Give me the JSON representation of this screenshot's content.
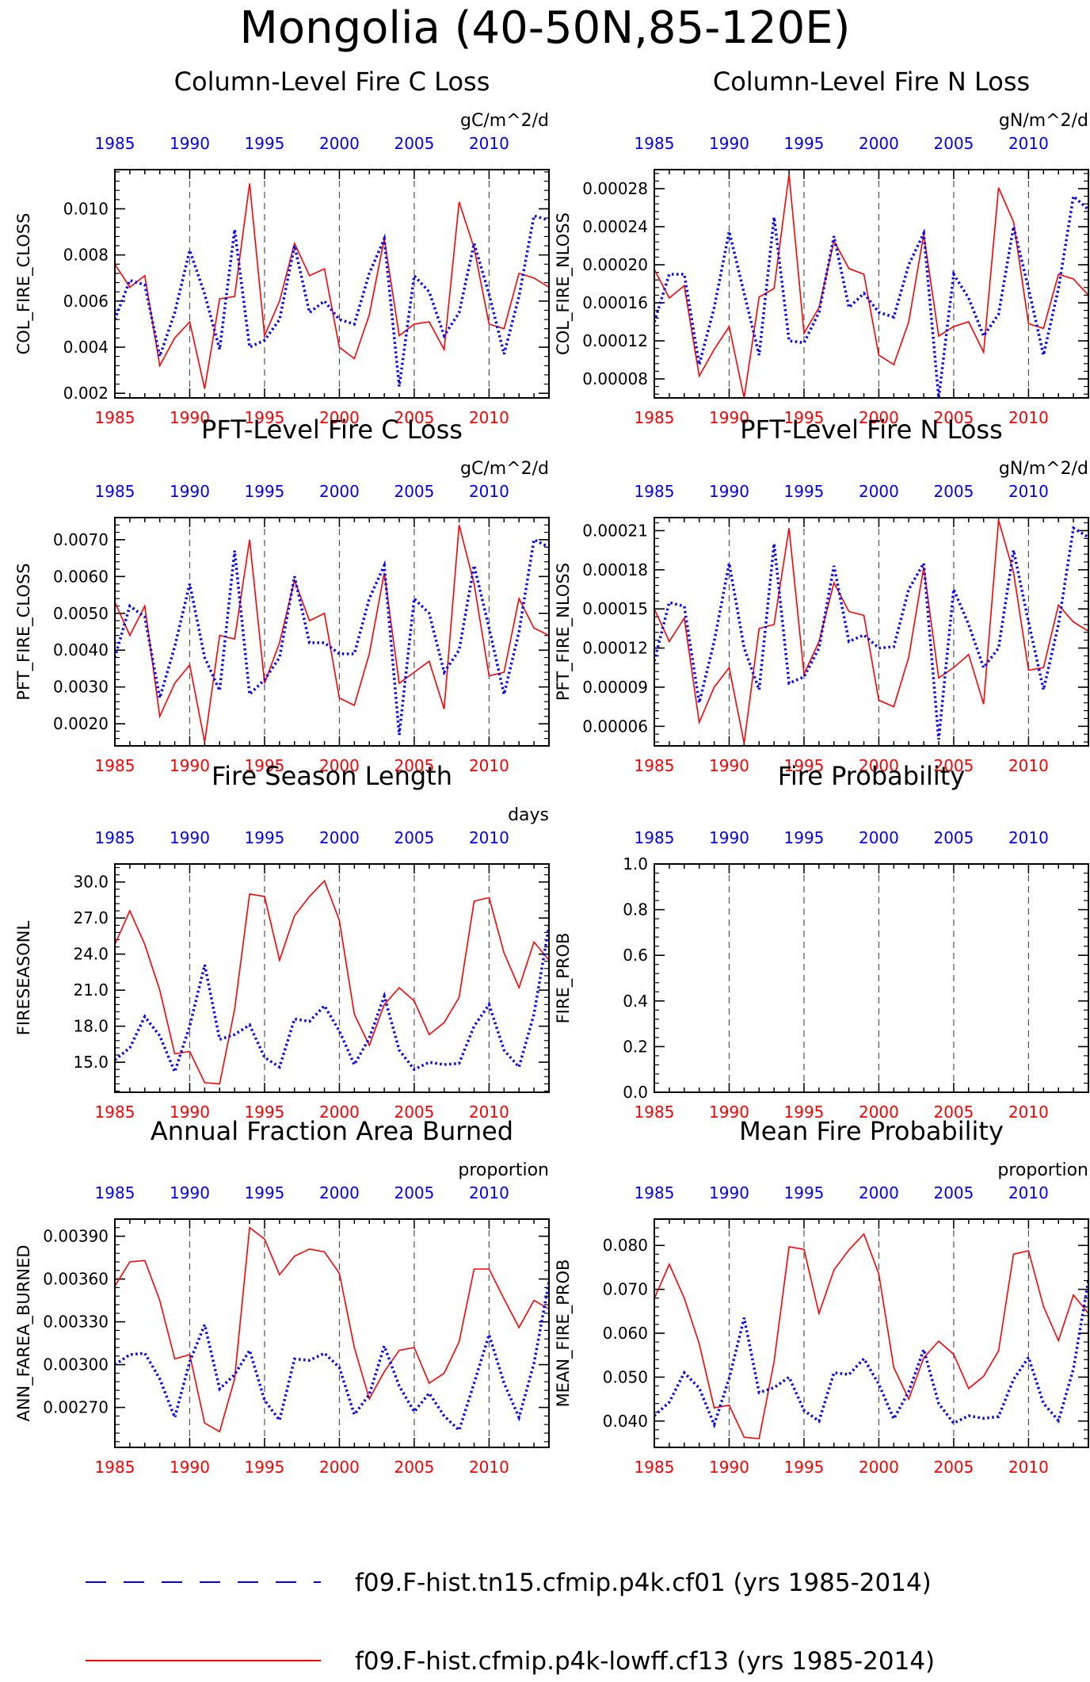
{
  "page_title": "Mongolia (40-50N,85-120E)",
  "colors": {
    "series_a": "#0000ff",
    "series_b": "#ff0000",
    "axis": "#000000"
  },
  "legend": {
    "entries": [
      {
        "label": "f09.F-hist.tn15.cfmip.p4k.cf01 (yrs 1985-2014)",
        "color": "#0000ff",
        "style": "dashed"
      },
      {
        "label": "f09.F-hist.cfmip.p4k-lowff.cf13 (yrs 1985-2014)",
        "color": "#ff0000",
        "style": "solid"
      }
    ]
  },
  "chart_data": [
    {
      "type": "line",
      "title": "Column-Level Fire C Loss",
      "units": "gC/m^2/d",
      "ylabel": "COL_FIRE_CLOSS",
      "xlim": [
        1985,
        2014
      ],
      "ylim": [
        0.0018,
        0.0117
      ],
      "yticks": [
        0.002,
        0.004,
        0.006,
        0.008,
        0.01
      ],
      "ytick_labels": [
        "0.002",
        "0.004",
        "0.006",
        "0.008",
        "0.010"
      ],
      "xtick_labels_top": [
        "1985",
        "1990",
        "1995",
        "2000",
        "2005",
        "2010"
      ],
      "xtick_labels_bottom": [
        "1985",
        "1990",
        "1995",
        "2000",
        "2005",
        "2010"
      ],
      "x": [
        1985,
        1986,
        1987,
        1988,
        1989,
        1990,
        1991,
        1992,
        1993,
        1994,
        1995,
        1996,
        1997,
        1998,
        1999,
        2000,
        2001,
        2002,
        2003,
        2004,
        2005,
        2006,
        2007,
        2008,
        2009,
        2010,
        2011,
        2012,
        2013,
        2014
      ],
      "series": [
        {
          "color": "#0000ff",
          "style": "dotted",
          "values": [
            0.0052,
            0.0069,
            0.0067,
            0.0036,
            0.0055,
            0.0082,
            0.0063,
            0.0039,
            0.0091,
            0.004,
            0.0043,
            0.0052,
            0.0084,
            0.0055,
            0.006,
            0.0052,
            0.005,
            0.0072,
            0.0087,
            0.0023,
            0.0071,
            0.0064,
            0.0045,
            0.0055,
            0.0085,
            0.0063,
            0.0037,
            0.0062,
            0.0097,
            0.0095
          ]
        },
        {
          "color": "#ff0000",
          "style": "solid",
          "values": [
            0.0076,
            0.0066,
            0.0071,
            0.0032,
            0.0044,
            0.0051,
            0.0022,
            0.0061,
            0.0062,
            0.0111,
            0.0045,
            0.006,
            0.0085,
            0.0071,
            0.0074,
            0.004,
            0.0035,
            0.0054,
            0.0087,
            0.0045,
            0.005,
            0.0051,
            0.0039,
            0.0103,
            0.0083,
            0.005,
            0.0048,
            0.0072,
            0.007,
            0.0066
          ]
        }
      ]
    },
    {
      "type": "line",
      "title": "Column-Level Fire N Loss",
      "units": "gN/m^2/d",
      "ylabel": "COL_FIRE_NLOSS",
      "xlim": [
        1985,
        2014
      ],
      "ylim": [
        6e-05,
        0.0003
      ],
      "yticks": [
        8e-05,
        0.00012,
        0.00016,
        0.0002,
        0.00024,
        0.00028
      ],
      "ytick_labels": [
        "0.00008",
        "0.00012",
        "0.00016",
        "0.00020",
        "0.00024",
        "0.00028"
      ],
      "xtick_labels_top": [
        "1985",
        "1990",
        "1995",
        "2000",
        "2005",
        "2010"
      ],
      "xtick_labels_bottom": [
        "1985",
        "1990",
        "1995",
        "2000",
        "2005",
        "2010"
      ],
      "x": [
        1985,
        1986,
        1987,
        1988,
        1989,
        1990,
        1991,
        1992,
        1993,
        1994,
        1995,
        1996,
        1997,
        1998,
        1999,
        2000,
        2001,
        2002,
        2003,
        2004,
        2005,
        2006,
        2007,
        2008,
        2009,
        2010,
        2011,
        2012,
        2013,
        2014
      ],
      "series": [
        {
          "color": "#0000ff",
          "style": "dotted",
          "values": [
            0.00014,
            0.00019,
            0.00019,
            9.5e-05,
            0.000155,
            0.000235,
            0.00017,
            0.000105,
            0.00025,
            0.00012,
            0.000118,
            0.00015,
            0.00023,
            0.000155,
            0.00017,
            0.00015,
            0.000145,
            0.0002,
            0.000233,
            6e-05,
            0.00019,
            0.000165,
            0.000125,
            0.000148,
            0.00024,
            0.000175,
            0.000105,
            0.000175,
            0.000272,
            0.000258
          ]
        },
        {
          "color": "#ff0000",
          "style": "solid",
          "values": [
            0.000195,
            0.000165,
            0.000178,
            8.3e-05,
            0.000111,
            0.000135,
            6e-05,
            0.000166,
            0.000175,
            0.000295,
            0.000128,
            0.000155,
            0.000225,
            0.000196,
            0.00019,
            0.000105,
            9.5e-05,
            0.00014,
            0.000232,
            0.000125,
            0.000135,
            0.00014,
            0.000108,
            0.000281,
            0.000245,
            0.000138,
            0.000133,
            0.00019,
            0.000185,
            0.000168
          ]
        }
      ]
    },
    {
      "type": "line",
      "title": "PFT-Level Fire C Loss",
      "units": "gC/m^2/d",
      "ylabel": "PFT_FIRE_CLOSS",
      "xlim": [
        1985,
        2014
      ],
      "ylim": [
        0.0014,
        0.0076
      ],
      "yticks": [
        0.002,
        0.003,
        0.004,
        0.005,
        0.006,
        0.007
      ],
      "ytick_labels": [
        "0.0020",
        "0.0030",
        "0.0040",
        "0.0050",
        "0.0060",
        "0.0070"
      ],
      "xtick_labels_top": [
        "1985",
        "1990",
        "1995",
        "2000",
        "2005",
        "2010"
      ],
      "xtick_labels_bottom": [
        "1985",
        "1990",
        "1995",
        "2000",
        "2005",
        "2010"
      ],
      "x": [
        1985,
        1986,
        1987,
        1988,
        1989,
        1990,
        1991,
        1992,
        1993,
        1994,
        1995,
        1996,
        1997,
        1998,
        1999,
        2000,
        2001,
        2002,
        2003,
        2004,
        2005,
        2006,
        2007,
        2008,
        2009,
        2010,
        2011,
        2012,
        2013,
        2014
      ],
      "series": [
        {
          "color": "#0000ff",
          "style": "dotted",
          "values": [
            0.0038,
            0.0052,
            0.0049,
            0.0027,
            0.0041,
            0.0058,
            0.0038,
            0.0029,
            0.0067,
            0.0028,
            0.0032,
            0.0038,
            0.006,
            0.0042,
            0.0042,
            0.0039,
            0.0039,
            0.0054,
            0.0063,
            0.0017,
            0.0054,
            0.005,
            0.0034,
            0.004,
            0.0063,
            0.0046,
            0.0028,
            0.0045,
            0.007,
            0.0068
          ]
        },
        {
          "color": "#ff0000",
          "style": "solid",
          "values": [
            0.0053,
            0.0044,
            0.0052,
            0.0022,
            0.0031,
            0.0036,
            0.0015,
            0.0044,
            0.0043,
            0.007,
            0.0031,
            0.0042,
            0.0059,
            0.0048,
            0.005,
            0.0027,
            0.0025,
            0.0039,
            0.0061,
            0.0031,
            0.0034,
            0.0037,
            0.0024,
            0.0074,
            0.0058,
            0.0033,
            0.0034,
            0.0054,
            0.0046,
            0.0044
          ]
        }
      ]
    },
    {
      "type": "line",
      "title": "PFT-Level Fire N Loss",
      "units": "gN/m^2/d",
      "ylabel": "PFT_FIRE_NLOSS",
      "xlim": [
        1985,
        2014
      ],
      "ylim": [
        4.5e-05,
        0.00022
      ],
      "yticks": [
        6e-05,
        9e-05,
        0.00012,
        0.00015,
        0.00018,
        0.00021
      ],
      "ytick_labels": [
        "0.00006",
        "0.00009",
        "0.00012",
        "0.00015",
        "0.00018",
        "0.00021"
      ],
      "xtick_labels_top": [
        "1985",
        "1990",
        "1995",
        "2000",
        "2005",
        "2010"
      ],
      "xtick_labels_bottom": [
        "1985",
        "1990",
        "1995",
        "2000",
        "2005",
        "2010"
      ],
      "x": [
        1985,
        1986,
        1987,
        1988,
        1989,
        1990,
        1991,
        1992,
        1993,
        1994,
        1995,
        1996,
        1997,
        1998,
        1999,
        2000,
        2001,
        2002,
        2003,
        2004,
        2005,
        2006,
        2007,
        2008,
        2009,
        2010,
        2011,
        2012,
        2013,
        2014
      ],
      "series": [
        {
          "color": "#0000ff",
          "style": "dotted",
          "values": [
            0.00011,
            0.000155,
            0.000152,
            7.8e-05,
            0.000125,
            0.000185,
            0.00012,
            8.8e-05,
            0.0002,
            9.3e-05,
            9.8e-05,
            0.00012,
            0.000183,
            0.000125,
            0.00013,
            0.00012,
            0.000121,
            0.000165,
            0.000185,
            5e-05,
            0.000165,
            0.000138,
            0.000105,
            0.00012,
            0.000195,
            0.00014,
            8.8e-05,
            0.000138,
            0.000212,
            0.000205
          ]
        },
        {
          "color": "#ff0000",
          "style": "solid",
          "values": [
            0.00015,
            0.000125,
            0.000143,
            6.3e-05,
            9e-05,
            0.000105,
            4.7e-05,
            0.000135,
            0.000138,
            0.000212,
            0.0001,
            0.000125,
            0.00017,
            0.000148,
            0.000145,
            8e-05,
            7.5e-05,
            0.000113,
            0.000182,
            9.7e-05,
            0.000105,
            0.000115,
            7.7e-05,
            0.000218,
            0.000178,
            0.000103,
            0.000105,
            0.000153,
            0.00014,
            0.000133
          ]
        }
      ]
    },
    {
      "type": "line",
      "title": "Fire Season Length",
      "units": "days",
      "ylabel": "FIRESEASONL",
      "xlim": [
        1985,
        2014
      ],
      "ylim": [
        12.5,
        31.5
      ],
      "yticks": [
        15,
        18,
        21,
        24,
        27,
        30
      ],
      "ytick_labels": [
        "15.0",
        "18.0",
        "21.0",
        "24.0",
        "27.0",
        "30.0"
      ],
      "xtick_labels_top": [
        "1985",
        "1990",
        "1995",
        "2000",
        "2005",
        "2010"
      ],
      "xtick_labels_bottom": [
        "1985",
        "1990",
        "1995",
        "2000",
        "2005",
        "2010"
      ],
      "x": [
        1985,
        1986,
        1987,
        1988,
        1989,
        1990,
        1991,
        1992,
        1993,
        1994,
        1995,
        1996,
        1997,
        1998,
        1999,
        2000,
        2001,
        2002,
        2003,
        2004,
        2005,
        2006,
        2007,
        2008,
        2009,
        2010,
        2011,
        2012,
        2013,
        2014
      ],
      "series": [
        {
          "color": "#0000ff",
          "style": "dotted",
          "values": [
            15.2,
            16.2,
            18.8,
            17.2,
            14.2,
            18.0,
            23.1,
            16.9,
            17.3,
            18.1,
            15.4,
            14.6,
            18.6,
            18.4,
            19.7,
            17.6,
            14.8,
            17.0,
            20.5,
            16.0,
            14.4,
            15.0,
            14.8,
            14.9,
            18.0,
            19.8,
            16.0,
            14.6,
            19.0,
            26.3
          ]
        },
        {
          "color": "#ff0000",
          "style": "solid",
          "values": [
            24.8,
            27.6,
            24.8,
            21.0,
            15.7,
            15.9,
            13.3,
            13.2,
            19.4,
            29.0,
            28.8,
            23.5,
            27.2,
            28.8,
            30.1,
            26.8,
            19.0,
            16.4,
            19.8,
            21.2,
            20.1,
            17.3,
            18.3,
            20.4,
            28.4,
            28.7,
            24.1,
            21.2,
            25.0,
            23.5
          ]
        }
      ]
    },
    {
      "type": "line",
      "title": "Fire Probability",
      "units": "",
      "ylabel": "FIRE_PROB",
      "xlim": [
        1985,
        2014
      ],
      "ylim": [
        0.0,
        1.0
      ],
      "yticks": [
        0.0,
        0.2,
        0.4,
        0.6,
        0.8,
        1.0
      ],
      "ytick_labels": [
        "0.0",
        "0.2",
        "0.4",
        "0.6",
        "0.8",
        "1.0"
      ],
      "xtick_labels_top": [
        "1985",
        "1990",
        "1995",
        "2000",
        "2005",
        "2010"
      ],
      "xtick_labels_bottom": [
        "1985",
        "1990",
        "1995",
        "2000",
        "2005",
        "2010"
      ],
      "x": [],
      "series": []
    },
    {
      "type": "line",
      "title": "Annual Fraction Area Burned",
      "units": "proportion",
      "ylabel": "ANN_FAREA_BURNED",
      "xlim": [
        1985,
        2014
      ],
      "ylim": [
        0.00242,
        0.00402
      ],
      "yticks": [
        0.0027,
        0.003,
        0.0033,
        0.0036,
        0.0039
      ],
      "ytick_labels": [
        "0.00270",
        "0.00300",
        "0.00330",
        "0.00360",
        "0.00390"
      ],
      "xtick_labels_top": [
        "1985",
        "1990",
        "1995",
        "2000",
        "2005",
        "2010"
      ],
      "xtick_labels_bottom": [
        "1985",
        "1990",
        "1995",
        "2000",
        "2005",
        "2010"
      ],
      "x": [
        1985,
        1986,
        1987,
        1988,
        1989,
        1990,
        1991,
        1992,
        1993,
        1994,
        1995,
        1996,
        1997,
        1998,
        1999,
        2000,
        2001,
        2002,
        2003,
        2004,
        2005,
        2006,
        2007,
        2008,
        2009,
        2010,
        2011,
        2012,
        2013,
        2014
      ],
      "series": [
        {
          "color": "#0000ff",
          "style": "dotted",
          "values": [
            0.003,
            0.00307,
            0.00308,
            0.0029,
            0.00263,
            0.00302,
            0.00328,
            0.00283,
            0.00293,
            0.0031,
            0.00275,
            0.00261,
            0.00304,
            0.00303,
            0.00308,
            0.00298,
            0.00265,
            0.00279,
            0.00313,
            0.00285,
            0.00267,
            0.0028,
            0.00264,
            0.00254,
            0.00287,
            0.00321,
            0.00287,
            0.00263,
            0.00301,
            0.00358
          ]
        },
        {
          "color": "#ff0000",
          "style": "solid",
          "values": [
            0.00355,
            0.00372,
            0.00373,
            0.00345,
            0.00304,
            0.00307,
            0.00259,
            0.00253,
            0.0029,
            0.00396,
            0.00388,
            0.00363,
            0.00376,
            0.00381,
            0.00379,
            0.00364,
            0.00312,
            0.00276,
            0.00295,
            0.0031,
            0.00312,
            0.00287,
            0.00294,
            0.00316,
            0.00367,
            0.00367,
            0.00346,
            0.00326,
            0.00345,
            0.00339
          ]
        }
      ]
    },
    {
      "type": "line",
      "title": "Mean Fire Probability",
      "units": "proportion",
      "ylabel": "MEAN_FIRE_PROB",
      "xlim": [
        1985,
        2014
      ],
      "ylim": [
        0.034,
        0.086
      ],
      "yticks": [
        0.04,
        0.05,
        0.06,
        0.07,
        0.08
      ],
      "ytick_labels": [
        "0.040",
        "0.050",
        "0.060",
        "0.070",
        "0.080"
      ],
      "xtick_labels_top": [
        "1985",
        "1990",
        "1995",
        "2000",
        "2005",
        "2010"
      ],
      "xtick_labels_bottom": [
        "1985",
        "1990",
        "1995",
        "2000",
        "2005",
        "2010"
      ],
      "x": [
        1985,
        1986,
        1987,
        1988,
        1989,
        1990,
        1991,
        1992,
        1993,
        1994,
        1995,
        1996,
        1997,
        1998,
        1999,
        2000,
        2001,
        2002,
        2003,
        2004,
        2005,
        2006,
        2007,
        2008,
        2009,
        2010,
        2011,
        2012,
        2013,
        2014
      ],
      "series": [
        {
          "color": "#0000ff",
          "style": "dotted",
          "values": [
            0.0412,
            0.0443,
            0.051,
            0.0475,
            0.0392,
            0.0497,
            0.0635,
            0.0465,
            0.0476,
            0.05,
            0.0424,
            0.04,
            0.051,
            0.0506,
            0.0542,
            0.0484,
            0.0405,
            0.0467,
            0.0563,
            0.044,
            0.0395,
            0.0412,
            0.0406,
            0.041,
            0.0495,
            0.0545,
            0.044,
            0.0401,
            0.0519,
            0.0721
          ]
        },
        {
          "color": "#ff0000",
          "style": "solid",
          "values": [
            0.0679,
            0.0757,
            0.068,
            0.0576,
            0.043,
            0.0436,
            0.0363,
            0.036,
            0.0535,
            0.0797,
            0.0791,
            0.0645,
            0.0744,
            0.079,
            0.0826,
            0.0735,
            0.0522,
            0.045,
            0.0544,
            0.0582,
            0.0552,
            0.0474,
            0.0502,
            0.056,
            0.078,
            0.0788,
            0.0661,
            0.0583,
            0.0687,
            0.0645
          ]
        }
      ]
    }
  ]
}
